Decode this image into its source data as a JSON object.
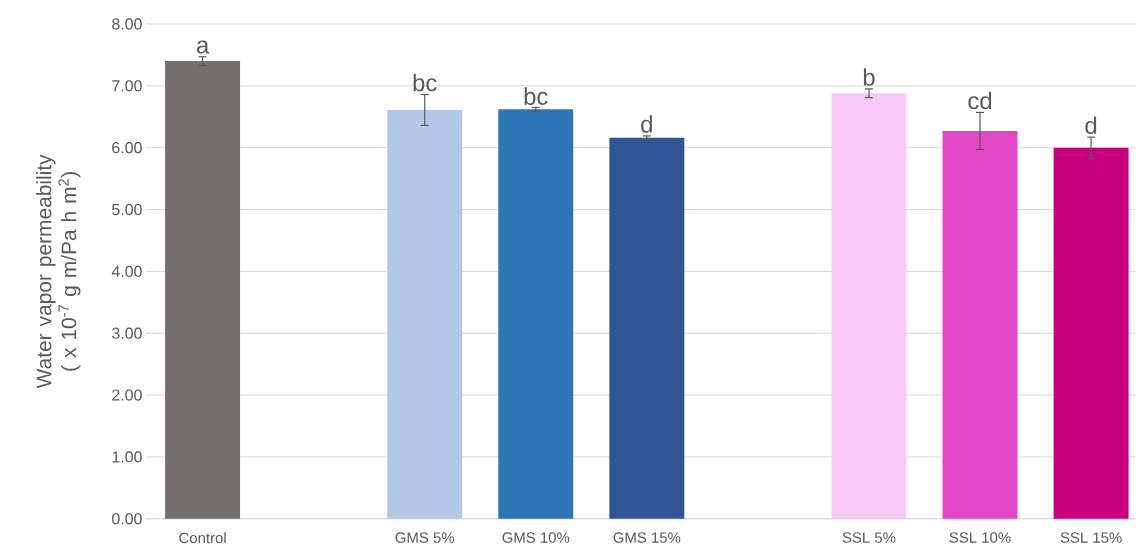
{
  "chart_data": {
    "type": "bar",
    "ylabel": "Water vapor permeability ( x 10$^{-7}$ g m/Pa h m$^{2}$)",
    "categories": [
      "Control",
      null,
      "GMS 5%",
      "GMS 10%",
      "GMS 15%",
      null,
      "SSL 5%",
      "SSL 10%",
      "SSL 15%"
    ],
    "values": [
      7.4,
      null,
      6.61,
      6.62,
      6.16,
      null,
      6.88,
      6.27,
      6.0
    ],
    "errors": [
      0.07,
      null,
      0.25,
      0.03,
      0.03,
      null,
      0.07,
      0.3,
      0.17
    ],
    "colors": [
      "#736f6e",
      null,
      "#b4c7e7",
      "#2e75b6",
      "#2f5597",
      null,
      "#f9c9f5",
      "#e446c6",
      "#c8007e"
    ],
    "ylim": [
      0,
      8
    ],
    "yticks": [
      {
        "value": 0,
        "label": "0.00"
      },
      {
        "value": 1,
        "label": "1.00"
      },
      {
        "value": 2,
        "label": "2.00"
      },
      {
        "value": 3,
        "label": "3.00"
      },
      {
        "value": 4,
        "label": "4.00"
      },
      {
        "value": 5,
        "label": "5.00"
      },
      {
        "value": 6,
        "label": "6.00"
      },
      {
        "value": 7,
        "label": "7.00"
      },
      {
        "value": 8,
        "label": "8.00"
      }
    ],
    "grid": "y",
    "annotations": [
      {
        "text": "a",
        "x": "Control",
        "y": 7.47
      },
      {
        "text": "bc",
        "x": "GMS 5%",
        "y": 6.86
      },
      {
        "text": "bc",
        "x": "GMS 10%",
        "y": 6.64
      },
      {
        "text": "d",
        "x": "GMS 15%",
        "y": 6.19
      },
      {
        "text": "b",
        "x": "SSL 5%",
        "y": 6.95
      },
      {
        "text": "cd",
        "x": "SSL 10%",
        "y": 6.57
      },
      {
        "text": "d",
        "x": "SSL 15%",
        "y": 6.17
      }
    ]
  }
}
